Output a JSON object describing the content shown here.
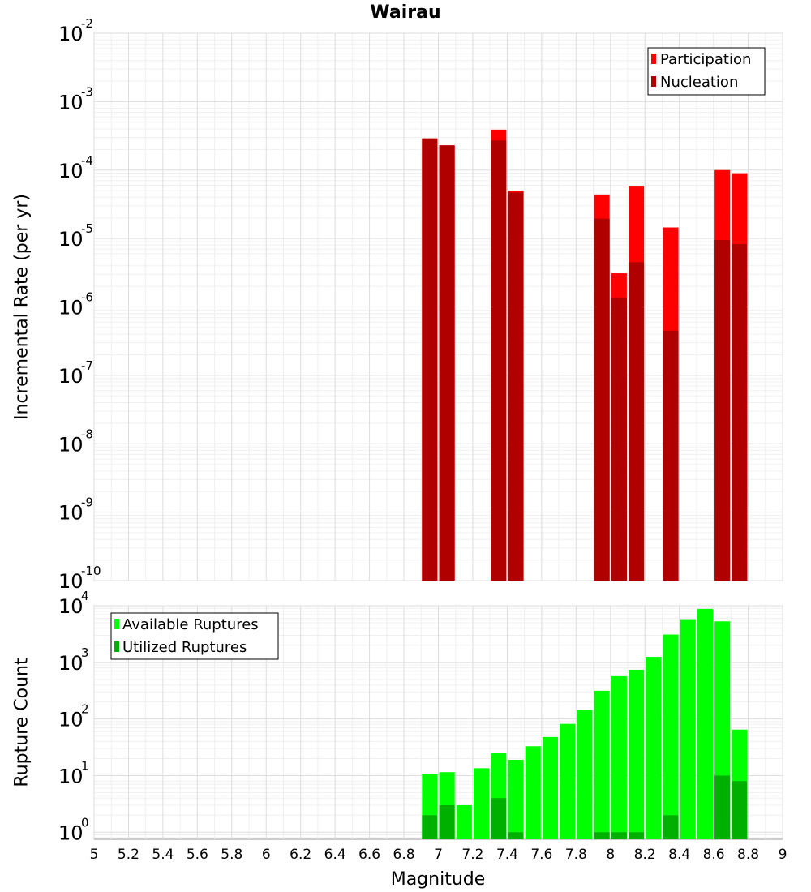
{
  "chart_data": [
    {
      "type": "bar",
      "title": "Wairau",
      "xlabel": "",
      "ylabel": "Incremental Rate (per yr)",
      "yscale": "log",
      "ylim": [
        1e-10,
        0.01
      ],
      "xlim": [
        5,
        9
      ],
      "grid": true,
      "legend_position": "top-right",
      "series": [
        {
          "name": "Participation",
          "color": "#ff0000",
          "x": [
            6.95,
            7.05,
            7.35,
            7.45,
            7.95,
            8.05,
            8.15,
            8.35,
            8.65,
            8.75
          ],
          "values": [
            0.00029,
            0.00023,
            0.00039,
            5e-05,
            4.4e-05,
            3.1e-06,
            5.9e-05,
            1.45e-05,
            0.0001,
            9e-05
          ]
        },
        {
          "name": "Nucleation",
          "color": "#b00000",
          "x": [
            6.95,
            7.05,
            7.35,
            7.45,
            7.95,
            8.05,
            8.15,
            8.35,
            8.65,
            8.75
          ],
          "values": [
            0.00029,
            0.00023,
            0.00027,
            4.7e-05,
            1.95e-05,
            1.35e-06,
            4.5e-06,
            4.5e-07,
            9.5e-06,
            8.3e-06
          ]
        }
      ],
      "y_ticks": [
        {
          "base": "10",
          "exp": "-10",
          "value": 1e-10
        },
        {
          "base": "10",
          "exp": "-9",
          "value": 1e-09
        },
        {
          "base": "10",
          "exp": "-8",
          "value": 1e-08
        },
        {
          "base": "10",
          "exp": "-7",
          "value": 1e-07
        },
        {
          "base": "10",
          "exp": "-6",
          "value": 1e-06
        },
        {
          "base": "10",
          "exp": "-5",
          "value": 1e-05
        },
        {
          "base": "10",
          "exp": "-4",
          "value": 0.0001
        },
        {
          "base": "10",
          "exp": "-3",
          "value": 0.001
        },
        {
          "base": "10",
          "exp": "-2",
          "value": 0.01
        }
      ]
    },
    {
      "type": "bar",
      "title": "",
      "xlabel": "Magnitude",
      "ylabel": "Rupture Count",
      "yscale": "log",
      "ylim": [
        0.75,
        10000
      ],
      "xlim": [
        5,
        9
      ],
      "grid": true,
      "legend_position": "top-left",
      "series": [
        {
          "name": "Available Ruptures",
          "color": "#00ff00",
          "x": [
            6.95,
            7.05,
            7.15,
            7.25,
            7.35,
            7.45,
            7.55,
            7.65,
            7.75,
            7.85,
            7.95,
            8.05,
            8.15,
            8.25,
            8.35,
            8.45,
            8.55,
            8.65,
            8.75
          ],
          "values": [
            10.5,
            11.5,
            3.0,
            13.5,
            25,
            19,
            33,
            48,
            82,
            145,
            315,
            570,
            740,
            1250,
            3100,
            5800,
            8800,
            5300,
            65
          ]
        },
        {
          "name": "Utilized Ruptures",
          "color": "#00b000",
          "x": [
            6.95,
            7.05,
            7.35,
            7.45,
            7.95,
            8.05,
            8.15,
            8.35,
            8.65,
            8.75
          ],
          "values": [
            2,
            3,
            4,
            1,
            1,
            1,
            1,
            2,
            10,
            8
          ]
        }
      ],
      "y_ticks": [
        {
          "base": "10",
          "exp": "0",
          "value": 1
        },
        {
          "base": "10",
          "exp": "1",
          "value": 10
        },
        {
          "base": "10",
          "exp": "2",
          "value": 100
        },
        {
          "base": "10",
          "exp": "3",
          "value": 1000
        },
        {
          "base": "10",
          "exp": "4",
          "value": 10000
        }
      ]
    }
  ],
  "x_ticks": [
    "5",
    "5.2",
    "5.4",
    "5.6",
    "5.8",
    "6",
    "6.2",
    "6.4",
    "6.6",
    "6.8",
    "7",
    "7.2",
    "7.4",
    "7.6",
    "7.8",
    "8",
    "8.2",
    "8.4",
    "8.6",
    "8.8",
    "9"
  ]
}
